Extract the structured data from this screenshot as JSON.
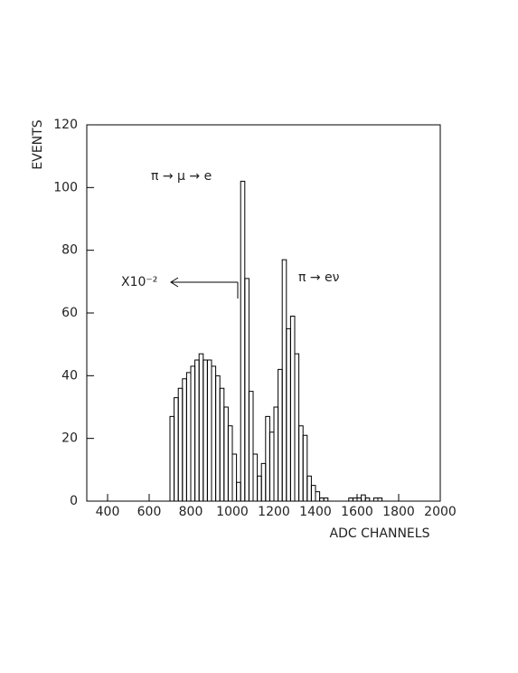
{
  "chart_data": {
    "type": "histogram",
    "x_label": "ADC CHANNELS",
    "y_label": "EVENTS",
    "annotations": [
      "π → μ → e",
      "X10⁻²",
      "π → eν"
    ],
    "bins": [
      700,
      720,
      740,
      760,
      780,
      800,
      820,
      840,
      860,
      880,
      900,
      920,
      940,
      960,
      980,
      1000,
      1020,
      1040,
      1060,
      1080,
      1100,
      1120,
      1140,
      1160,
      1180,
      1200,
      1220,
      1240,
      1260,
      1280,
      1300,
      1320,
      1340,
      1360,
      1380,
      1400,
      1420,
      1440,
      1460,
      1480,
      1500,
      1520,
      1540,
      1560,
      1580,
      1600,
      1620,
      1640,
      1660,
      1680,
      1700,
      1720,
      1740
    ],
    "values": [
      27,
      33,
      36,
      39,
      41,
      43,
      45,
      47,
      45,
      45,
      43,
      40,
      36,
      30,
      24,
      15,
      6,
      102,
      71,
      35,
      15,
      8,
      12,
      27,
      22,
      30,
      42,
      77,
      55,
      59,
      47,
      24,
      21,
      8,
      5,
      3,
      1,
      1,
      0,
      0,
      0,
      0,
      0,
      1,
      1,
      1,
      2,
      1,
      0,
      1,
      1,
      0
    ],
    "color": "#000000",
    "xlim": [
      300,
      2000
    ],
    "xticks": [
      400,
      600,
      800,
      1000,
      1200,
      1400,
      1600,
      1800,
      2000
    ],
    "ylim": [
      0,
      120
    ],
    "yticks": [
      0,
      20,
      40,
      60,
      80,
      100,
      120
    ]
  }
}
